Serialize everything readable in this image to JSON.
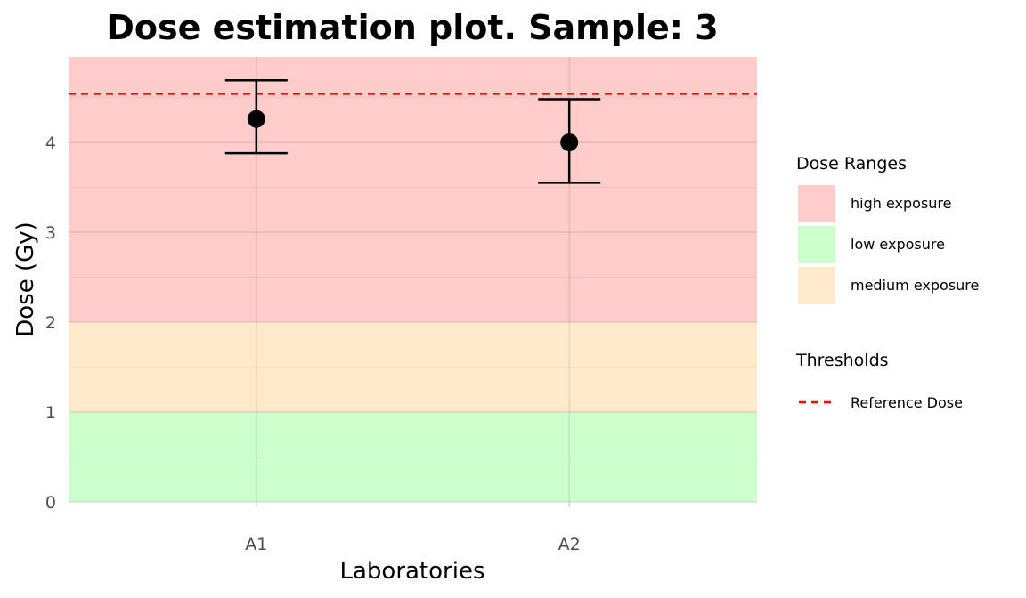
{
  "chart_data": {
    "type": "scatter",
    "title": "Dose estimation plot. Sample:  3",
    "xlabel": "Laboratories",
    "ylabel": "Dose (Gy)",
    "categories": [
      "A1",
      "A2"
    ],
    "ylim": [
      0,
      4.95
    ],
    "yticks": [
      "0",
      "1",
      "2",
      "3",
      "4"
    ],
    "grid": true,
    "series": [
      {
        "values": [
          4.26,
          4.0
        ],
        "error_low": [
          3.88,
          3.55
        ],
        "error_high": [
          4.69,
          4.48
        ],
        "color": "#000000"
      }
    ],
    "ranges": [
      {
        "name": "low exposure",
        "from": 0,
        "to": 1,
        "color": "#ccffcc"
      },
      {
        "name": "medium exposure",
        "from": 1,
        "to": 2,
        "color": "#ffebcc"
      },
      {
        "name": "high exposure",
        "from": 2,
        "to": 4.95,
        "color": "#ffcccc"
      }
    ],
    "reference_line": {
      "name": "Reference Dose",
      "value": 4.54,
      "color": "#ff0000",
      "style": "dashed"
    },
    "legend": {
      "placement": "right",
      "groups": [
        {
          "title": "Dose Ranges",
          "items": [
            {
              "label": "high exposure",
              "color": "#ffcccc"
            },
            {
              "label": "low exposure",
              "color": "#ccffcc"
            },
            {
              "label": "medium exposure",
              "color": "#ffebcc"
            }
          ]
        },
        {
          "title": "Thresholds",
          "items": [
            {
              "label": "Reference Dose",
              "color": "#ff0000",
              "style": "dashed"
            }
          ]
        }
      ]
    }
  }
}
